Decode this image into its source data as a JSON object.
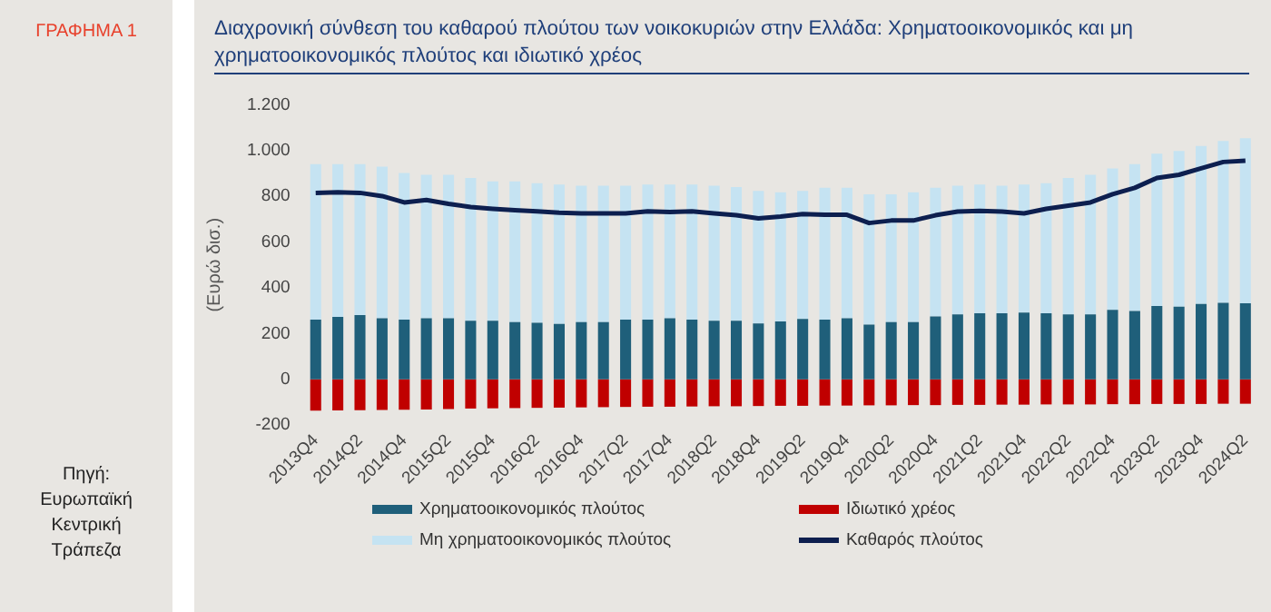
{
  "chart_data": {
    "type": "bar",
    "title": "Διαχρονική σύνθεση του καθαρού πλούτου των νοικοκυριών στην Ελλάδα: Χρηματοοικονομικός και μη χρηματοοικονομικός πλούτος και ιδιωτικό χρέος",
    "ylabel": "(Ευρώ δισ.)",
    "annotations": [
      "ΓΡΑΦΗΜΑ 1",
      "Πηγή: Ευρωπαϊκή Κεντρική Τράπεζα"
    ],
    "categories": [
      "2013Q4",
      null,
      "2014Q2",
      null,
      "2014Q4",
      null,
      "2015Q2",
      null,
      "2015Q4",
      null,
      "2016Q2",
      null,
      "2016Q4",
      null,
      "2017Q2",
      null,
      "2017Q4",
      null,
      "2018Q2",
      null,
      "2018Q4",
      null,
      "2019Q2",
      null,
      "2019Q4",
      null,
      "2020Q2",
      null,
      "2020Q4",
      null,
      "2021Q2",
      null,
      "2021Q4",
      null,
      "2022Q2",
      null,
      "2022Q4",
      null,
      "2023Q2",
      null,
      "2023Q4",
      null,
      "2024Q2"
    ],
    "stacked": true,
    "series": [
      {
        "name": "Χρηματοοικονομικός πλούτος",
        "color": "#1f5f7a",
        "values": [
          261,
          273,
          281,
          267,
          261,
          267,
          267,
          256,
          256,
          250,
          247,
          242,
          250,
          250,
          261,
          261,
          267,
          261,
          256,
          256,
          244,
          253,
          264,
          261,
          267,
          239,
          250,
          250,
          275,
          284,
          289,
          289,
          292,
          289,
          284,
          284,
          303,
          298,
          320,
          317,
          329,
          334,
          332
        ]
      },
      {
        "name": "Μη χρηματοοικονομικός πλούτος",
        "color": "#c5e3f2",
        "values": [
          680,
          668,
          660,
          663,
          641,
          627,
          627,
          624,
          609,
          615,
          610,
          609,
          596,
          596,
          585,
          590,
          584,
          590,
          590,
          584,
          579,
          565,
          559,
          576,
          570,
          570,
          559,
          568,
          562,
          562,
          562,
          557,
          559,
          568,
          596,
          610,
          619,
          643,
          666,
          681,
          691,
          708,
          722
        ]
      },
      {
        "name": "Ιδιωτικό χρέος",
        "color": "#c00000",
        "values": [
          -137,
          -136,
          -135,
          -134,
          -133,
          -132,
          -130,
          -128,
          -127,
          -126,
          -125,
          -124,
          -123,
          -122,
          -121,
          -120,
          -120,
          -119,
          -118,
          -118,
          -117,
          -116,
          -116,
          -115,
          -115,
          -114,
          -114,
          -113,
          -113,
          -112,
          -112,
          -111,
          -111,
          -110,
          -110,
          -110,
          -109,
          -109,
          -108,
          -108,
          -108,
          -107,
          -107
        ]
      },
      {
        "name": "Καθαρός πλούτος",
        "type": "line",
        "color": "#0d1f4f",
        "values": [
          815,
          818,
          815,
          801,
          773,
          784,
          767,
          753,
          745,
          739,
          734,
          728,
          725,
          725,
          725,
          734,
          731,
          734,
          725,
          717,
          703,
          711,
          722,
          719,
          719,
          683,
          694,
          694,
          717,
          733,
          736,
          733,
          725,
          745,
          759,
          773,
          809,
          837,
          880,
          894,
          922,
          950,
          955
        ]
      }
    ],
    "ylim": [
      -200,
      1200
    ],
    "yticks": [
      -200,
      0,
      200,
      400,
      600,
      800,
      {
        "value": 1000,
        "label": "1.000"
      },
      {
        "value": 1200,
        "label": "1.200"
      }
    ],
    "grid": false,
    "legend": "bottom",
    "marker": "none"
  }
}
